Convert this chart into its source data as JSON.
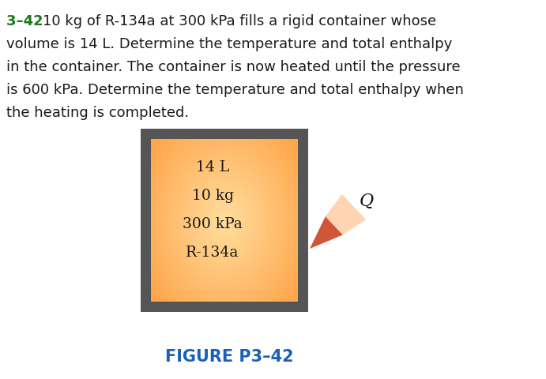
{
  "problem_number": "3–42",
  "problem_text_line1": "10 kg of R-134a at 300 kPa fills a rigid container whose",
  "problem_text_line2": "volume is 14 L. Determine the temperature and total enthalpy",
  "problem_text_line3": "in the container. The container is now heated until the pressure",
  "problem_text_line4": "is 600 kPa. Determine the temperature and total enthalpy when",
  "problem_text_line5": "the heating is completed.",
  "figure_caption": "FIGURE P3–42",
  "container_label_lines": [
    "R-134a",
    "300 kPa",
    "10 kg",
    "14 L"
  ],
  "heat_label": "Q",
  "bg_color": "#ffffff",
  "box_outer_color": "#555555",
  "arrow_color": "#cc4422",
  "problem_number_color": "#1a7a1a",
  "problem_text_color": "#1a1a1a",
  "figure_caption_color": "#1a5fba",
  "container_text_color": "#1a1a1a",
  "heat_label_color": "#111111",
  "text_fontsize": 13.0,
  "problem_num_fontsize": 13.0,
  "caption_fontsize": 15,
  "container_text_fontsize": 13.5,
  "heat_label_fontsize": 16,
  "fig_width": 6.91,
  "fig_height": 4.8,
  "dpi": 100
}
